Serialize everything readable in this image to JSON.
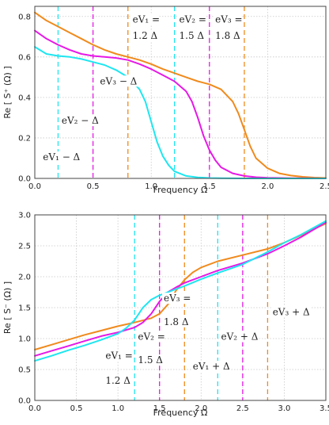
{
  "chart_data": [
    {
      "type": "line",
      "xlabel": "Frequency Ω",
      "ylabel": "Re [ S⁺ (Ω) ]",
      "xlim": [
        0,
        2.5
      ],
      "ylim": [
        0,
        0.85
      ],
      "xticks": [
        "0.0",
        "0.5",
        "1.0",
        "1.5",
        "2.0",
        "2.5"
      ],
      "yticks": [
        "0.0",
        "0.2",
        "0.4",
        "0.6",
        "0.8"
      ],
      "grid": true,
      "series": [
        {
          "color": "#f08a1c",
          "x": [
            0,
            0.1,
            0.2,
            0.3,
            0.4,
            0.5,
            0.6,
            0.7,
            0.8,
            0.9,
            1.0,
            1.1,
            1.2,
            1.3,
            1.4,
            1.5,
            1.6,
            1.7,
            1.75,
            1.8,
            1.85,
            1.9,
            2.0,
            2.1,
            2.2,
            2.3,
            2.4,
            2.5
          ],
          "y": [
            0.82,
            0.78,
            0.75,
            0.72,
            0.69,
            0.66,
            0.635,
            0.615,
            0.6,
            0.585,
            0.565,
            0.54,
            0.52,
            0.5,
            0.48,
            0.465,
            0.44,
            0.38,
            0.32,
            0.24,
            0.16,
            0.1,
            0.05,
            0.025,
            0.014,
            0.008,
            0.004,
            0.002
          ]
        },
        {
          "color": "#e619e6",
          "x": [
            0,
            0.1,
            0.2,
            0.3,
            0.4,
            0.5,
            0.6,
            0.7,
            0.8,
            0.9,
            1.0,
            1.1,
            1.2,
            1.3,
            1.35,
            1.4,
            1.45,
            1.5,
            1.55,
            1.6,
            1.7,
            1.8,
            1.9,
            2.0,
            2.1,
            2.2,
            2.5
          ],
          "y": [
            0.73,
            0.69,
            0.66,
            0.635,
            0.615,
            0.605,
            0.6,
            0.595,
            0.585,
            0.565,
            0.54,
            0.51,
            0.48,
            0.43,
            0.38,
            0.3,
            0.21,
            0.14,
            0.09,
            0.055,
            0.025,
            0.012,
            0.006,
            0.003,
            0.002,
            0.001,
            0.0
          ]
        },
        {
          "color": "#1ee6f0",
          "x": [
            0,
            0.1,
            0.2,
            0.3,
            0.4,
            0.5,
            0.6,
            0.7,
            0.8,
            0.9,
            0.95,
            1.0,
            1.05,
            1.1,
            1.15,
            1.2,
            1.3,
            1.4,
            1.5,
            1.6,
            1.8,
            2.0,
            2.5
          ],
          "y": [
            0.65,
            0.615,
            0.605,
            0.6,
            0.59,
            0.575,
            0.56,
            0.535,
            0.5,
            0.44,
            0.38,
            0.28,
            0.18,
            0.11,
            0.065,
            0.035,
            0.012,
            0.005,
            0.002,
            0.001,
            0.0,
            0.0,
            0.0
          ]
        }
      ],
      "vlines": [
        {
          "x": 0.2,
          "color": "#1ee6f0"
        },
        {
          "x": 0.5,
          "color": "#e619e6"
        },
        {
          "x": 0.8,
          "color": "#f08a1c"
        },
        {
          "x": 1.2,
          "color": "#1ee6f0"
        },
        {
          "x": 1.5,
          "color": "#e619e6"
        },
        {
          "x": 1.8,
          "color": "#f08a1c"
        }
      ],
      "annotations": [
        {
          "text": "eV₁ − Δ",
          "x": 0.07,
          "y": 0.09
        },
        {
          "text": "eV₂ − Δ",
          "x": 0.23,
          "y": 0.27
        },
        {
          "text": "eV₃ − Δ",
          "x": 0.56,
          "y": 0.465
        },
        {
          "text": "eV₁ =",
          "x": 0.84,
          "y": 0.77
        },
        {
          "text": "1.2 Δ",
          "x": 0.84,
          "y": 0.69
        },
        {
          "text": "eV₂ =",
          "x": 1.24,
          "y": 0.77
        },
        {
          "text": "1.5 Δ",
          "x": 1.24,
          "y": 0.69
        },
        {
          "text": "eV₃ =",
          "x": 1.55,
          "y": 0.77
        },
        {
          "text": "1.8 Δ",
          "x": 1.55,
          "y": 0.69
        }
      ]
    },
    {
      "type": "line",
      "xlabel": "Frequency Ω",
      "ylabel": "Re [ S⁻ (Ω) ]",
      "xlim": [
        0,
        3.5
      ],
      "ylim": [
        0,
        3.0
      ],
      "xticks": [
        "0.0",
        "0.5",
        "1.0",
        "1.5",
        "2.0",
        "2.5",
        "3.0",
        "3.5"
      ],
      "yticks": [
        "0.0",
        "0.5",
        "1.0",
        "1.5",
        "2.0",
        "2.5",
        "3.0"
      ],
      "grid": true,
      "series": [
        {
          "color": "#f08a1c",
          "x": [
            0,
            0.2,
            0.4,
            0.6,
            0.8,
            1.0,
            1.2,
            1.4,
            1.5,
            1.6,
            1.7,
            1.8,
            1.9,
            2.0,
            2.2,
            2.5,
            2.8,
            3.0,
            3.2,
            3.5
          ],
          "y": [
            0.82,
            0.9,
            0.98,
            1.06,
            1.13,
            1.2,
            1.26,
            1.33,
            1.4,
            1.55,
            1.78,
            1.95,
            2.07,
            2.15,
            2.25,
            2.35,
            2.45,
            2.55,
            2.67,
            2.86
          ]
        },
        {
          "color": "#e619e6",
          "x": [
            0,
            0.2,
            0.4,
            0.6,
            0.8,
            1.0,
            1.2,
            1.3,
            1.4,
            1.5,
            1.6,
            1.7,
            1.8,
            2.0,
            2.2,
            2.5,
            2.8,
            3.0,
            3.2,
            3.5
          ],
          "y": [
            0.72,
            0.8,
            0.88,
            0.96,
            1.04,
            1.1,
            1.18,
            1.26,
            1.4,
            1.6,
            1.75,
            1.83,
            1.9,
            2.0,
            2.1,
            2.22,
            2.37,
            2.5,
            2.64,
            2.88
          ]
        },
        {
          "color": "#1ee6f0",
          "x": [
            0,
            0.2,
            0.4,
            0.6,
            0.8,
            1.0,
            1.1,
            1.2,
            1.3,
            1.4,
            1.5,
            1.6,
            1.8,
            2.0,
            2.2,
            2.5,
            2.8,
            3.0,
            3.2,
            3.5
          ],
          "y": [
            0.64,
            0.72,
            0.81,
            0.89,
            0.98,
            1.08,
            1.17,
            1.3,
            1.5,
            1.63,
            1.7,
            1.75,
            1.85,
            1.96,
            2.06,
            2.2,
            2.4,
            2.55,
            2.68,
            2.9
          ]
        }
      ],
      "vlines": [
        {
          "x": 1.2,
          "color": "#1ee6f0"
        },
        {
          "x": 1.5,
          "color": "#e619e6"
        },
        {
          "x": 1.8,
          "color": "#f08a1c"
        },
        {
          "x": 2.2,
          "color": "#1ee6f0"
        },
        {
          "x": 2.5,
          "color": "#e619e6"
        },
        {
          "x": 2.8,
          "color": "#f08a1c"
        }
      ],
      "annotations": [
        {
          "text": "eV₁ =",
          "x": 0.85,
          "y": 0.67
        },
        {
          "text": "1.2 Δ",
          "x": 0.85,
          "y": 0.27
        },
        {
          "text": "eV₂ =",
          "x": 1.24,
          "y": 0.98
        },
        {
          "text": "1.5 Δ",
          "x": 1.24,
          "y": 0.6
        },
        {
          "text": "eV₃ =",
          "x": 1.55,
          "y": 1.6
        },
        {
          "text": "1.8 Δ",
          "x": 1.55,
          "y": 1.22
        },
        {
          "text": "eV₁ + Δ",
          "x": 1.9,
          "y": 0.5
        },
        {
          "text": "eV₂ + Δ",
          "x": 2.24,
          "y": 0.98
        },
        {
          "text": "eV₃ + Δ",
          "x": 2.86,
          "y": 1.38
        }
      ]
    }
  ]
}
